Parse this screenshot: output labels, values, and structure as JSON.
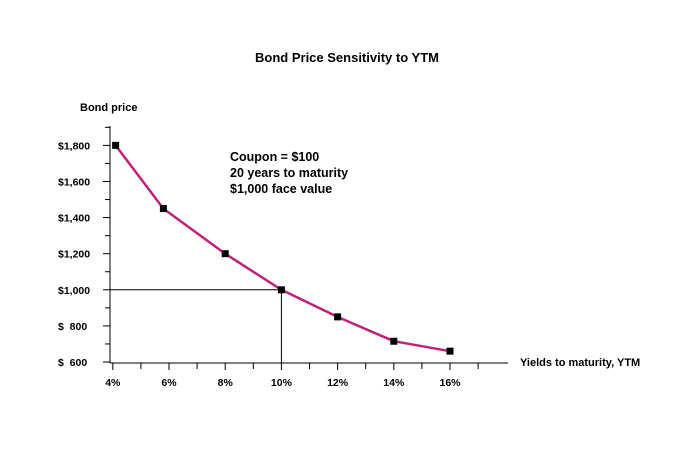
{
  "chart_data": {
    "type": "line",
    "title": "Bond Price Sensitivity to YTM",
    "xlabel": "Yields to maturity, YTM",
    "ylabel": "Bond price",
    "x_ticks": [
      "4%",
      "6%",
      "8%",
      "10%",
      "12%",
      "14%",
      "16%"
    ],
    "x_tick_values": [
      4,
      6,
      8,
      10,
      12,
      14,
      16
    ],
    "y_ticks": [
      "$1,800",
      "$1,600",
      "$1,400",
      "$1,200",
      "$1,000",
      "$  800",
      "$  600"
    ],
    "y_tick_values": [
      1800,
      1600,
      1400,
      1200,
      1000,
      800,
      600
    ],
    "xlim": [
      3.9,
      17.3
    ],
    "ylim": [
      600,
      1900
    ],
    "grid": false,
    "series": [
      {
        "x": [
          4.1,
          5.8,
          8,
          10,
          12,
          14,
          16
        ],
        "y": [
          1800,
          1450,
          1200,
          1000,
          850,
          715,
          660
        ]
      }
    ],
    "reference_point": {
      "x": 10,
      "y": 1000
    },
    "annotation_lines": [
      "Coupon = $100",
      "20 years to maturity",
      "$1,000 face value"
    ],
    "line_color": "#c0207a",
    "marker_color": "#000000"
  }
}
